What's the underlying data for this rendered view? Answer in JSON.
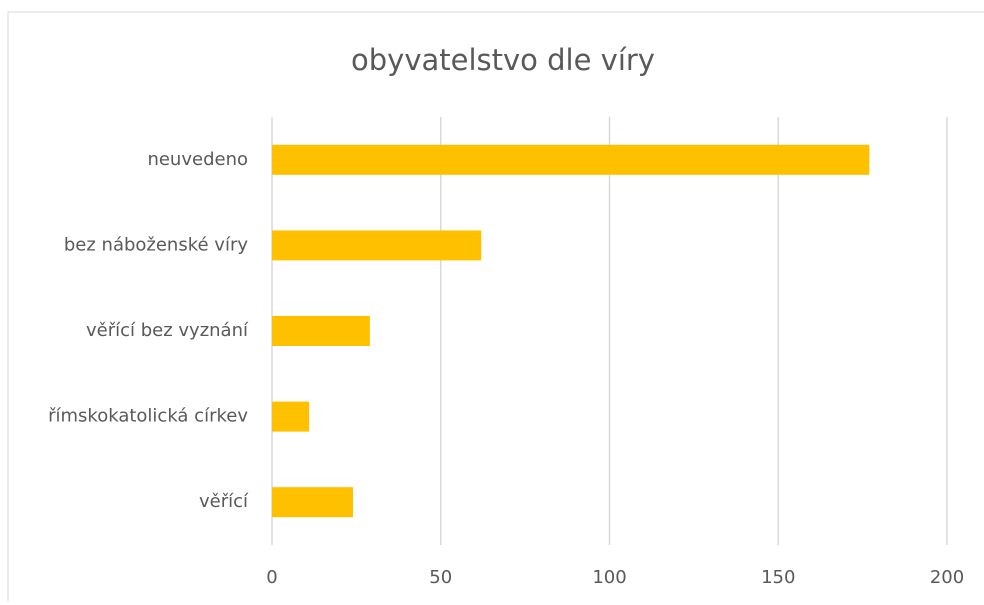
{
  "chart_data": {
    "type": "bar",
    "orientation": "horizontal",
    "title": "obyvatelstvo dle víry",
    "categories": [
      "neuvedeno",
      "bez náboženské víry",
      "věřící bez vyznání",
      "římskokatolická církev",
      "věřící"
    ],
    "values": [
      177,
      62,
      29,
      11,
      24
    ],
    "color": "#ffc000",
    "xlim": [
      0,
      200
    ],
    "xticks": [
      0,
      50,
      100,
      150,
      200
    ],
    "grid": true
  }
}
